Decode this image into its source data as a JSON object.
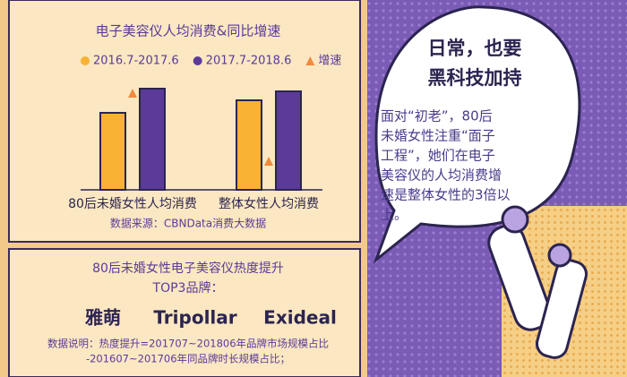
{
  "chart_data": {
    "type": "bar",
    "title": "电子美容仪人均消费&同比增速",
    "categories": [
      "80后未婚女性人均消费",
      "整体女性人均消费"
    ],
    "series": [
      {
        "name": "2016.7-2017.6",
        "color": "#f9b233",
        "values": [
          86,
          100
        ]
      },
      {
        "name": "2017.7-2018.6",
        "color": "#5b3a99",
        "values": [
          113,
          110
        ]
      },
      {
        "name": "增速",
        "color": "#f08a3c",
        "marker": "triangle",
        "values": [
          108,
          32
        ]
      }
    ],
    "source": "数据来源：CBNData消费大数据"
  },
  "brands": {
    "title_lines": [
      "80后未婚女性电子美容仪热度提升",
      "TOP3品牌："
    ],
    "names": [
      "雅萌",
      "Tripollar",
      "Exideal"
    ],
    "note_lines": [
      "数据说明：热度提升=201707~201806年品牌市场规模占比",
      "-201607~201706年同品牌时长规模占比；"
    ]
  },
  "bubble": {
    "title_lines": [
      "日常，也要",
      "黑科技加持"
    ],
    "body_lines": [
      "面对“初老”，80后",
      "未婚女性注重“面子",
      "工程”，她们在电子",
      "美容仪的人均消费增",
      "速是整体女性的3倍以",
      "上。"
    ]
  }
}
